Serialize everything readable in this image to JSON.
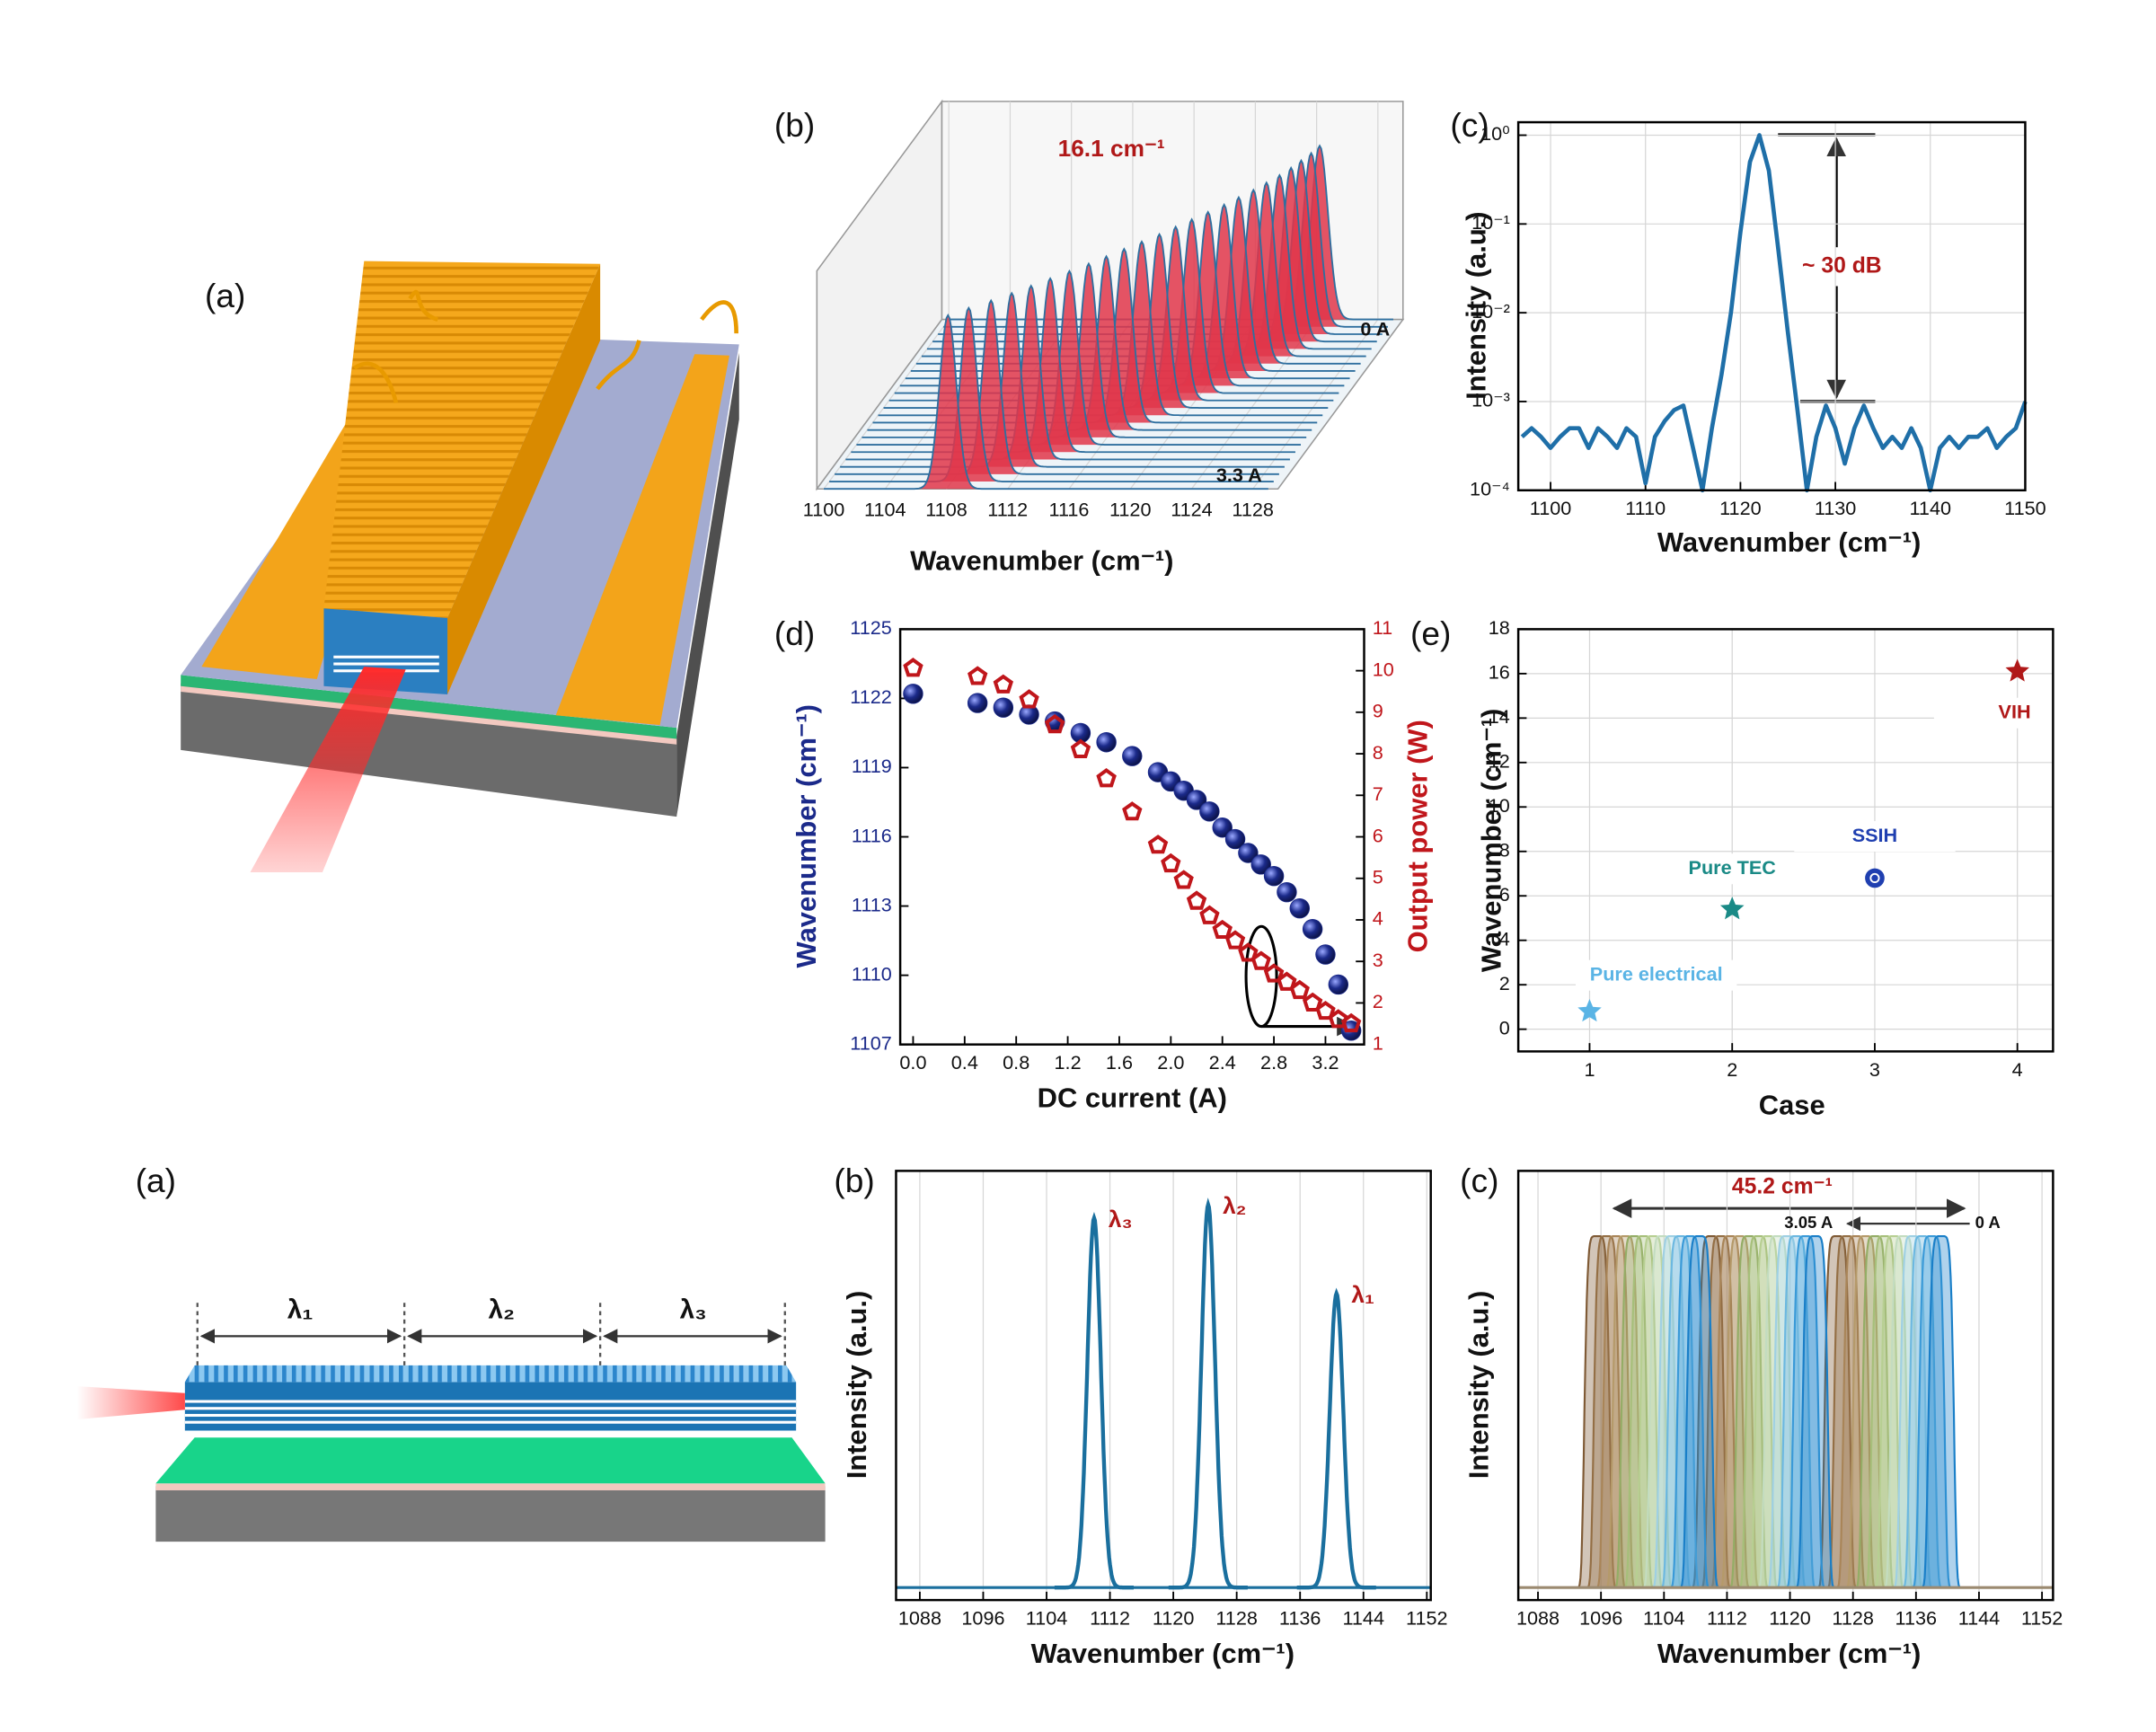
{
  "panel_labels": [
    "(a)",
    "(b)",
    "(c)",
    "(d)",
    "(e)",
    "(a)",
    "(b)",
    "(c)"
  ],
  "illustration": {
    "segment_labels": [
      "λ₁",
      "λ₂",
      "λ₃"
    ]
  },
  "chart_data": [
    {
      "type": "waterfall",
      "x_label": "Wavenumber (cm⁻¹)",
      "xlim": [
        1100,
        1130
      ],
      "xticks": [
        1100,
        1104,
        1108,
        1112,
        1116,
        1120,
        1124,
        1128
      ],
      "values": [
        1124.2,
        1124.0,
        1123.7,
        1123.4,
        1123.0,
        1122.5,
        1122.0,
        1121.4,
        1120.8,
        1120.1,
        1119.4,
        1118.7,
        1118.0,
        1117.2,
        1116.4,
        1115.6,
        1114.8,
        1113.9,
        1113.0,
        1112.1,
        1111.2,
        1110.2,
        1109.1,
        1108.1
      ],
      "annotation": "16.1 cm⁻¹",
      "start_label": "0 A",
      "end_label": "3.3 A",
      "line_color": "#2f6f9f",
      "fill_color": "#e0364a",
      "annotation_color": "#b01818"
    },
    {
      "type": "line",
      "log_y": true,
      "grid": true,
      "x_label": "Wavenumber (cm⁻¹)",
      "y_label": "Intensity (a.u.)",
      "xlim": [
        1096.6,
        1150
      ],
      "xticks": [
        1100,
        1110,
        1120,
        1130,
        1140,
        1150
      ],
      "ylim": [
        0.0001,
        1.4
      ],
      "yticks": [
        {
          "value": 1,
          "label": "10⁰"
        },
        {
          "value": 0.1,
          "label": "10⁻¹"
        },
        {
          "value": 0.01,
          "label": "10⁻²"
        },
        {
          "value": 0.001,
          "label": "10⁻³"
        },
        {
          "value": 0.0001,
          "label": "10⁻⁴"
        }
      ],
      "x": [
        1097,
        1098,
        1099,
        1100,
        1101,
        1102,
        1103,
        1104,
        1105,
        1106,
        1107,
        1108,
        1109,
        1110,
        1111,
        1112,
        1113,
        1114,
        1115,
        1116,
        1117,
        1118,
        1119,
        1120,
        1121,
        1122,
        1123,
        1124,
        1125,
        1126,
        1127,
        1128,
        1129,
        1130,
        1131,
        1132,
        1133,
        1134,
        1135,
        1136,
        1137,
        1138,
        1139,
        1140,
        1141,
        1142,
        1143,
        1144,
        1145,
        1146,
        1147,
        1148,
        1149,
        1150
      ],
      "values": [
        0.0004,
        0.0005,
        0.0004,
        0.0003,
        0.0004,
        0.0005,
        0.0005,
        0.0003,
        0.0005,
        0.0004,
        0.0003,
        0.0005,
        0.0004,
        0.00012,
        0.0004,
        0.0006,
        0.0008,
        0.0009,
        0.0003,
        0.0001,
        0.0005,
        0.002,
        0.01,
        0.08,
        0.5,
        1,
        0.4,
        0.05,
        0.006,
        0.0008,
        0.0001,
        0.0004,
        0.0009,
        0.0005,
        0.0002,
        0.0005,
        0.0009,
        0.0005,
        0.0003,
        0.0004,
        0.0003,
        0.0005,
        0.0003,
        0.0001,
        0.0003,
        0.0004,
        0.0003,
        0.0004,
        0.0004,
        0.0005,
        0.0003,
        0.0004,
        0.0005,
        0.001
      ],
      "color": "#1f6fa8",
      "annotation": "~ 30 dB",
      "annotation_color": "#b01818"
    },
    {
      "type": "dual_scatter",
      "x_label": "DC current (A)",
      "y_label": "Wavenumber (cm⁻¹)",
      "y2_label": "Output power (W)",
      "xlim": [
        -0.1,
        3.5
      ],
      "xticks": [
        {
          "value": 0,
          "label": "0.0"
        },
        0.4,
        0.8,
        1.2,
        1.6,
        {
          "value": 2,
          "label": "2.0"
        },
        2.4,
        2.8,
        3.2
      ],
      "ylim": [
        1107,
        1125
      ],
      "yticks": [
        1107,
        1110,
        1113,
        1116,
        1119,
        1122,
        1125
      ],
      "y2lim": [
        1,
        11
      ],
      "y2ticks": [
        1,
        2,
        3,
        4,
        5,
        6,
        7,
        8,
        9,
        10,
        11
      ],
      "x": [
        0,
        0.5,
        0.7,
        0.9,
        1.1,
        1.3,
        1.5,
        1.7,
        1.9,
        2.0,
        2.1,
        2.2,
        2.3,
        2.4,
        2.5,
        2.6,
        2.7,
        2.8,
        2.9,
        3.0,
        3.1,
        3.2,
        3.3,
        3.4
      ],
      "series": [
        {
          "color": "#1b2a8a",
          "values": [
            1122.2,
            1121.8,
            1121.6,
            1121.3,
            1121.0,
            1120.5,
            1120.1,
            1119.5,
            1118.8,
            1118.4,
            1118.0,
            1117.6,
            1117.1,
            1116.4,
            1115.9,
            1115.3,
            1114.8,
            1114.3,
            1113.6,
            1112.9,
            1112.0,
            1110.9,
            1109.6,
            1107.6
          ]
        },
        {
          "color": "#c0161b",
          "axis": "y2",
          "values": [
            10.06,
            9.86,
            9.66,
            9.3,
            8.7,
            8.1,
            7.4,
            6.6,
            5.8,
            5.35,
            4.95,
            4.45,
            4.1,
            3.75,
            3.5,
            3.2,
            3.0,
            2.7,
            2.5,
            2.3,
            2.0,
            1.8,
            1.6,
            1.5
          ]
        }
      ]
    },
    {
      "type": "scatter",
      "grid": true,
      "x_label": "Case",
      "y_label": "Wavenumber (cm⁻¹)",
      "xlim": [
        0.5,
        4.25
      ],
      "xticks": [
        1,
        2,
        3,
        4
      ],
      "ylim": [
        -1,
        18
      ],
      "yticks": [
        0,
        2,
        4,
        6,
        8,
        10,
        12,
        14,
        16,
        18
      ],
      "x": [
        1,
        2,
        3,
        4
      ],
      "values": [
        0.8,
        5.4,
        6.8,
        16.1
      ],
      "labels": [
        "Pure electrical",
        "Pure TEC",
        "SSIH",
        "VIH"
      ],
      "colors": [
        "#5ab4e5",
        "#1a8a86",
        "#1f3fb0",
        "#b01818"
      ],
      "markers": [
        "star",
        "star",
        "circle",
        "star"
      ]
    },
    {
      "type": "peaks",
      "grid": true,
      "x_label": "Wavenumber (cm⁻¹)",
      "y_label": "Intensity (a.u.)",
      "xlim": [
        1085,
        1152.5
      ],
      "xticks": [
        1088,
        1096,
        1104,
        1112,
        1120,
        1128,
        1136,
        1144,
        1152
      ],
      "ylim": [
        -0.03,
        1
      ],
      "peaks": [
        {
          "label": "λ₃",
          "position": 1110.0,
          "height": 0.887
        },
        {
          "label": "λ₂",
          "position": 1124.4,
          "height": 0.919
        },
        {
          "label": "λ₁",
          "position": 1140.6,
          "height": 0.706
        }
      ],
      "color": "#1a6f9e",
      "label_color": "#b01818"
    },
    {
      "type": "tuning",
      "grid": true,
      "x_label": "Wavenumber (cm⁻¹)",
      "y_label": "Intensity (a.u.)",
      "xlim": [
        1085.5,
        1153.4
      ],
      "xticks": [
        1088,
        1096,
        1104,
        1112,
        1120,
        1128,
        1136,
        1144,
        1152
      ],
      "traces": [
        [
          1108.5,
          1123.2,
          1139.2
        ],
        [
          1107.3,
          1122.0,
          1138.0
        ],
        [
          1106.1,
          1120.8,
          1136.8
        ],
        [
          1105.0,
          1119.6,
          1135.6
        ],
        [
          1103.8,
          1118.4,
          1134.4
        ],
        [
          1102.6,
          1117.2,
          1133.2
        ],
        [
          1101.4,
          1116.0,
          1132.0
        ],
        [
          1100.2,
          1114.8,
          1130.8
        ],
        [
          1099.1,
          1113.6,
          1129.6
        ],
        [
          1097.9,
          1112.4,
          1128.4
        ],
        [
          1096.7,
          1111.2,
          1127.2
        ],
        [
          1095.5,
          1110.0,
          1126.0
        ]
      ],
      "colors": [
        "#1a7fc8",
        "#3a9ad8",
        "#6cb8e0",
        "#9fd0e3",
        "#c3dcc0",
        "#b7cf92",
        "#a6bf7a",
        "#94ad66",
        "#b59a6a",
        "#a98558",
        "#946f45",
        "#7f5a35"
      ],
      "annotation": "45.2 cm⁻¹",
      "start_label": "3.05 A",
      "end_label": "0 A",
      "annotation_color": "#b01818"
    }
  ]
}
